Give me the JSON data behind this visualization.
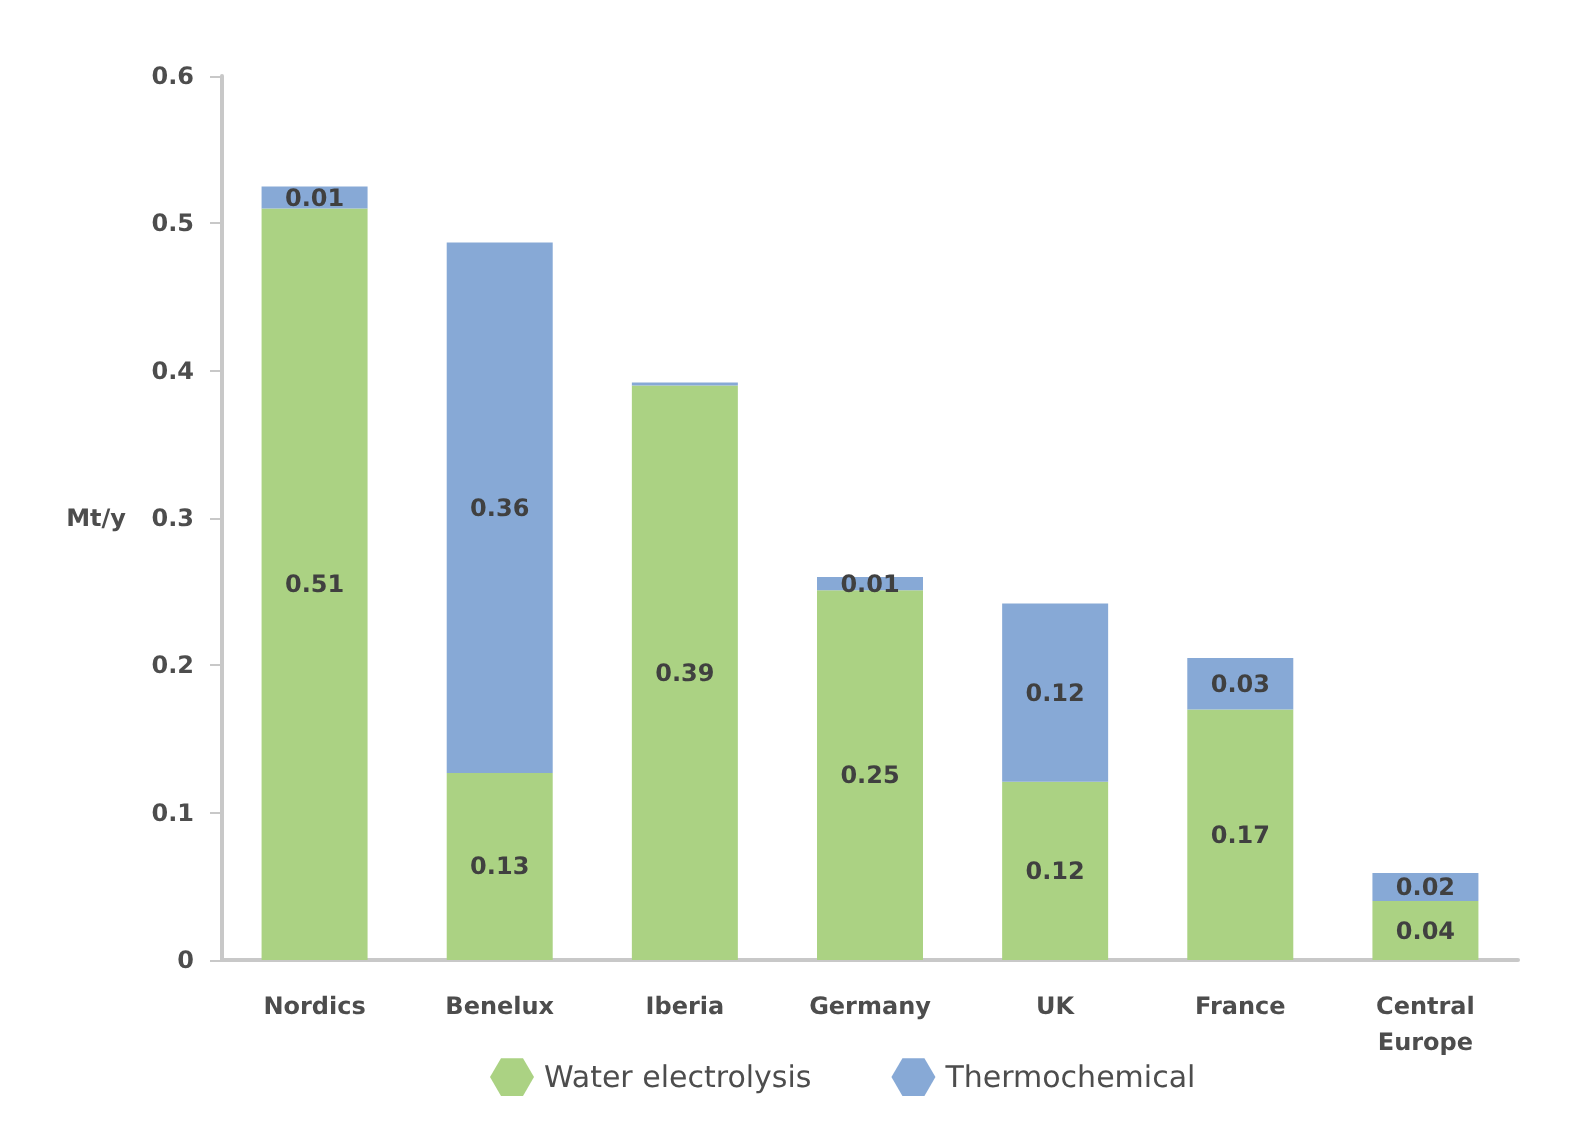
{
  "chart_data": {
    "type": "bar",
    "stacked": true,
    "ylabel": "Mt/y",
    "categories": [
      "Nordics",
      "Benelux",
      "Iberia",
      "Germany",
      "UK",
      "France",
      "Central Europe"
    ],
    "series": [
      {
        "name": "Water electrolysis",
        "color": "#abd283",
        "values": [
          0.51,
          0.127,
          0.39,
          0.251,
          0.121,
          0.17,
          0.04
        ],
        "value_labels": [
          "0.51",
          "0.13",
          "0.39",
          "0.25",
          "0.12",
          "0.17",
          "0.04"
        ]
      },
      {
        "name": "Thermochemical",
        "color": "#87a9d6",
        "values": [
          0.015,
          0.36,
          0.002,
          0.009,
          0.121,
          0.035,
          0.019
        ],
        "value_labels": [
          "0.01",
          "0.36",
          null,
          "0.01",
          "0.12",
          "0.03",
          "0.02"
        ]
      }
    ],
    "ylim": [
      0,
      0.6
    ],
    "yticks": [
      0,
      0.1,
      0.2,
      0.3,
      0.4,
      0.5,
      0.6
    ],
    "grid": false,
    "legend": "bottom"
  }
}
